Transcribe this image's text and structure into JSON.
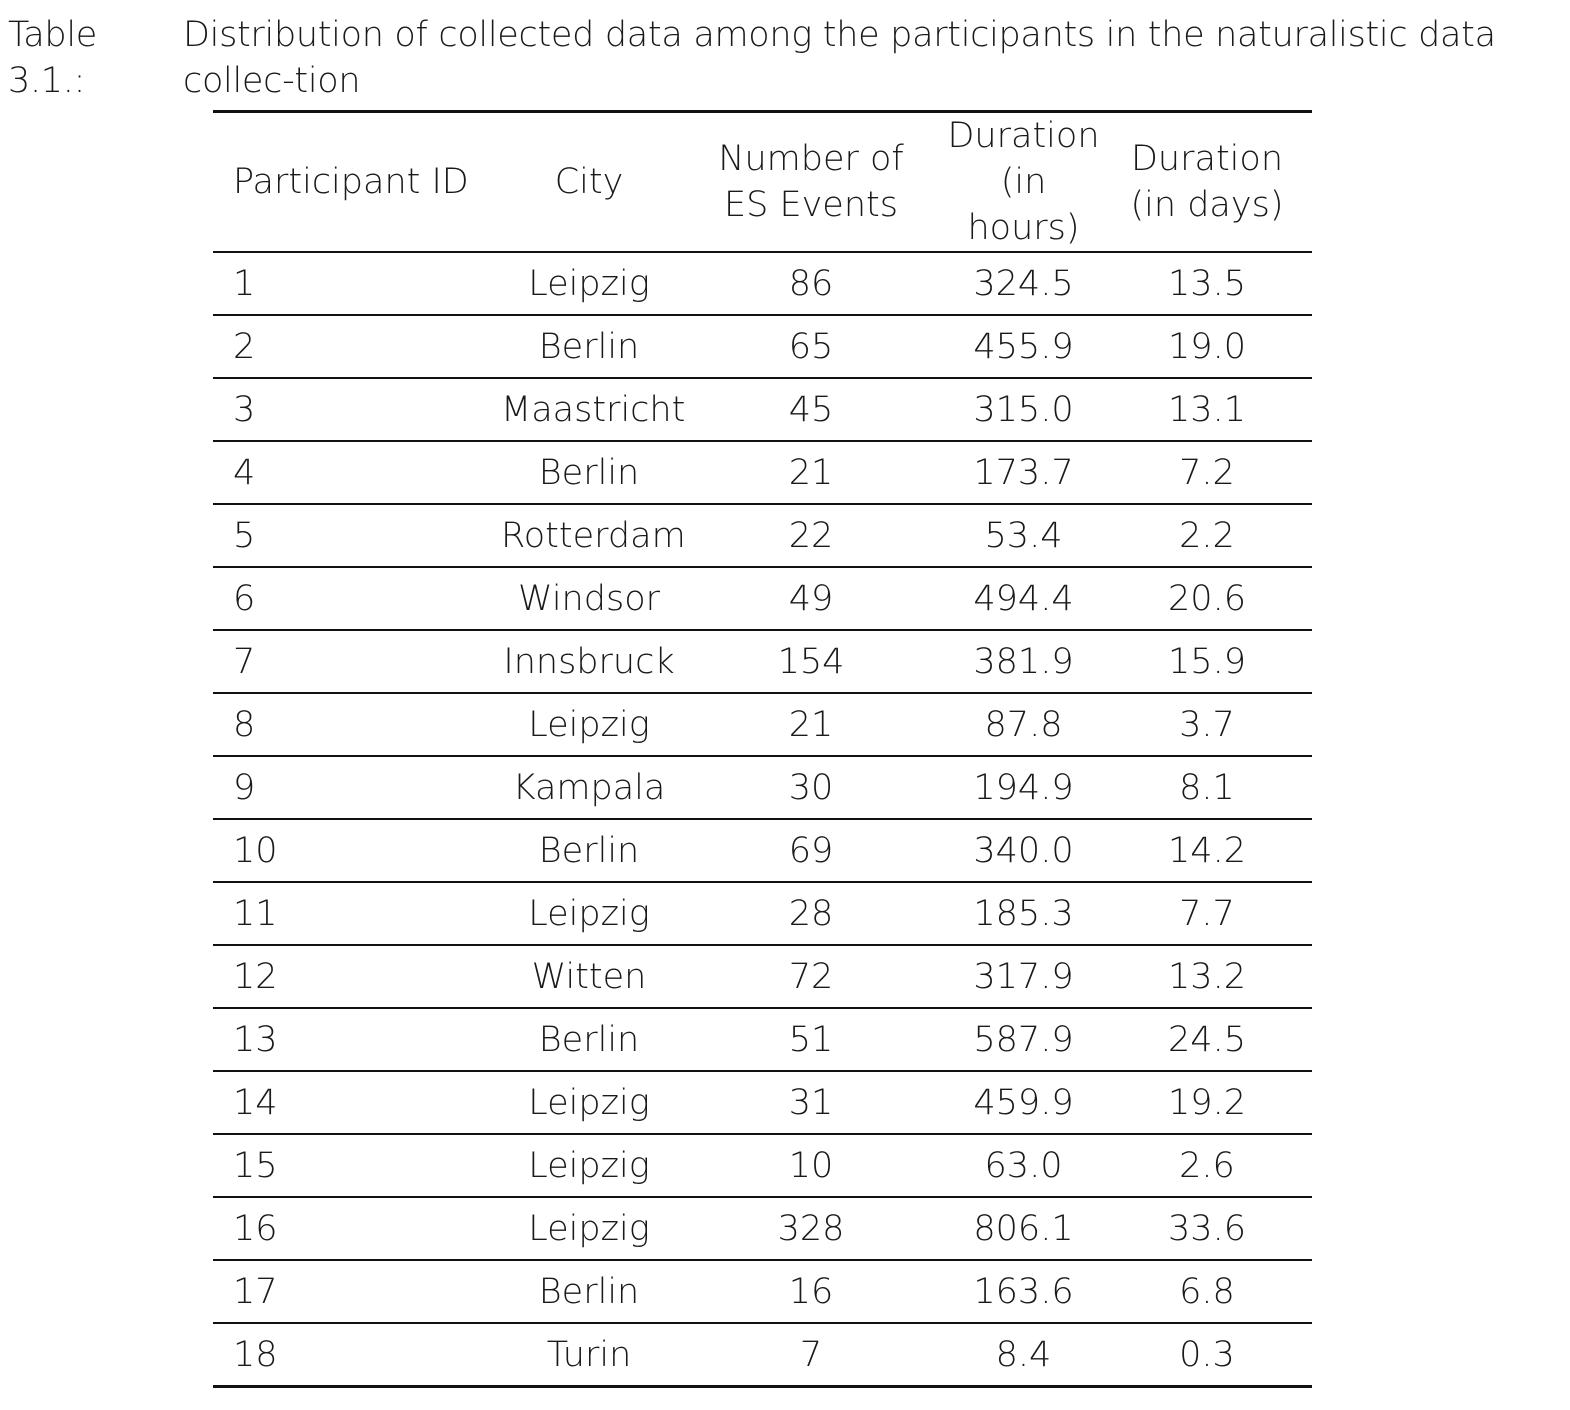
{
  "caption": {
    "label": "Table 3.1.:",
    "text": "Distribution of collected data among the participants in the naturalistic data collec-tion"
  },
  "table": {
    "headers": {
      "participant": "Participant ID",
      "city": "City",
      "events_line1": "Number of",
      "events_line2": "ES Events",
      "hours_line1": "Duration",
      "hours_line2": "(in hours)",
      "days_line1": "Duration",
      "days_line2": "(in days)"
    },
    "rows": [
      {
        "id": "1",
        "city": "Leipzig",
        "events": "86",
        "hours": "324.5",
        "days": "13.5"
      },
      {
        "id": "2",
        "city": "Berlin",
        "events": "65",
        "hours": "455.9",
        "days": "19.0"
      },
      {
        "id": "3",
        "city": "Maastricht",
        "events": "45",
        "hours": "315.0",
        "days": "13.1"
      },
      {
        "id": "4",
        "city": "Berlin",
        "events": "21",
        "hours": "173.7",
        "days": "7.2"
      },
      {
        "id": "5",
        "city": "Rotterdam",
        "events": "22",
        "hours": "53.4",
        "days": "2.2"
      },
      {
        "id": "6",
        "city": "Windsor",
        "events": "49",
        "hours": "494.4",
        "days": "20.6"
      },
      {
        "id": "7",
        "city": "Innsbruck",
        "events": "154",
        "hours": "381.9",
        "days": "15.9"
      },
      {
        "id": "8",
        "city": "Leipzig",
        "events": "21",
        "hours": "87.8",
        "days": "3.7"
      },
      {
        "id": "9",
        "city": "Kampala",
        "events": "30",
        "hours": "194.9",
        "days": "8.1"
      },
      {
        "id": "10",
        "city": "Berlin",
        "events": "69",
        "hours": "340.0",
        "days": "14.2"
      },
      {
        "id": "11",
        "city": "Leipzig",
        "events": "28",
        "hours": "185.3",
        "days": "7.7"
      },
      {
        "id": "12",
        "city": "Witten",
        "events": "72",
        "hours": "317.9",
        "days": "13.2"
      },
      {
        "id": "13",
        "city": "Berlin",
        "events": "51",
        "hours": "587.9",
        "days": "24.5"
      },
      {
        "id": "14",
        "city": "Leipzig",
        "events": "31",
        "hours": "459.9",
        "days": "19.2"
      },
      {
        "id": "15",
        "city": "Leipzig",
        "events": "10",
        "hours": "63.0",
        "days": "2.6"
      },
      {
        "id": "16",
        "city": "Leipzig",
        "events": "328",
        "hours": "806.1",
        "days": "33.6"
      },
      {
        "id": "17",
        "city": "Berlin",
        "events": "16",
        "hours": "163.6",
        "days": "6.8"
      },
      {
        "id": "18",
        "city": "Turin",
        "events": "7",
        "hours": "8.4",
        "days": "0.3"
      }
    ]
  }
}
